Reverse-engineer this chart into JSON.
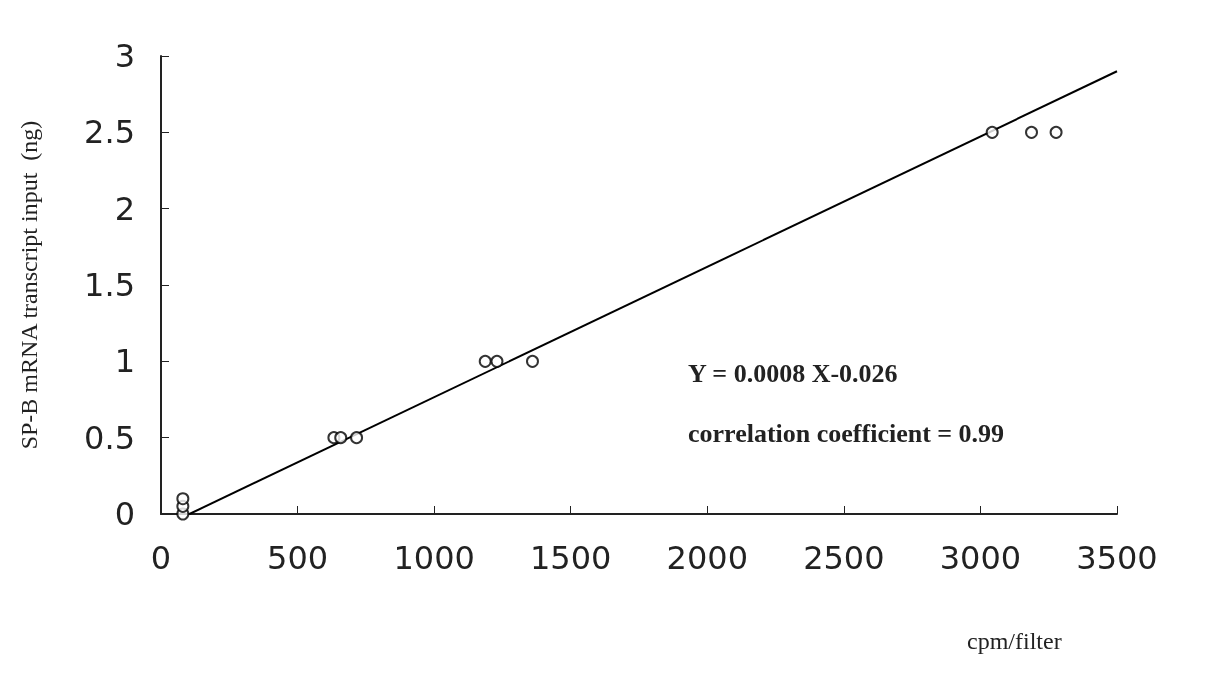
{
  "chart_data": {
    "type": "scatter",
    "xlabel": "cpm/filter",
    "ylabel": "SP-B mRNA transcript input  (ng)",
    "xlim": [
      0,
      3500
    ],
    "xticks": [
      0,
      500,
      1000,
      1500,
      2000,
      2500,
      3000,
      3500
    ],
    "ylim": [
      0,
      3
    ],
    "yticks": [
      0,
      0.5,
      1,
      1.5,
      2,
      2.5,
      3
    ],
    "grid": false,
    "series": [
      {
        "type": "scatter",
        "color": "#000000",
        "marker": "circle",
        "x": [
          80,
          80,
          80,
          633,
          658,
          716,
          1187,
          1230,
          1360,
          3043,
          3187,
          3277
        ],
        "values": [
          0,
          0.05,
          0.1,
          0.5,
          0.5,
          0.5,
          1,
          1,
          1,
          2.5,
          2.5,
          2.5
        ]
      },
      {
        "type": "line",
        "color": "#000000",
        "marker": "none",
        "line_style": "solid",
        "x": [
          104,
          3500
        ],
        "values": [
          0,
          2.9
        ]
      }
    ],
    "annotations": [
      "Y = 0.0008 X-0.026",
      "correlation coefficient = 0.99"
    ]
  }
}
